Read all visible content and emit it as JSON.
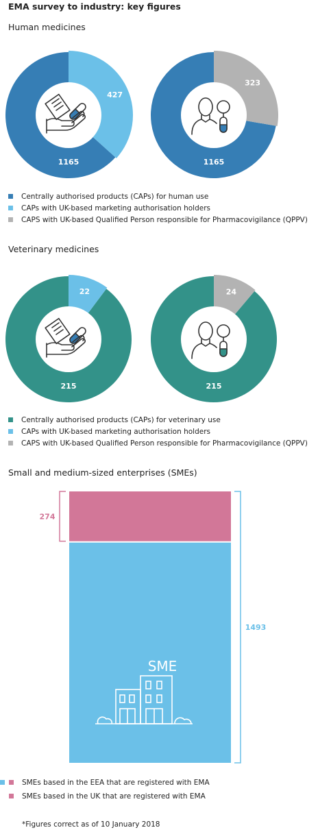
{
  "title": "EMA survey to industry: key figures",
  "colors": {
    "human": "#367eb5",
    "vet": "#339289",
    "light_blue": "#6bc0e8",
    "grey": "#b3b3b3",
    "pink": "#d27798",
    "white": "#ffffff"
  },
  "human": {
    "heading": "Human medicines",
    "legend": [
      {
        "label": "Centrally authorised products (CAPs) for human use",
        "color": "#367eb5"
      },
      {
        "label": "CAPs with UK-based marketing authorisation holders",
        "color": "#6bc0e8"
      },
      {
        "label": "CAPS with UK-based Qualified Person responsible for Pharmacovigilance (QPPV)",
        "color": "#b3b3b3"
      }
    ]
  },
  "vet": {
    "heading": "Veterinary medicines",
    "legend": [
      {
        "label": "Centrally authorised products (CAPs) for veterinary use",
        "color": "#339289"
      },
      {
        "label": "CAPs with UK-based marketing authorisation holders",
        "color": "#6bc0e8"
      },
      {
        "label": "CAPS with UK-based Qualified Person responsible for Pharmacovigilance (QPPV)",
        "color": "#b3b3b3"
      }
    ]
  },
  "sme": {
    "heading": "Small and medium-sized enterprises (SMEs)",
    "icon_label": "SME",
    "legend": [
      {
        "label": "SMEs based in the EEA that are registered with EMA",
        "color": "#6bc0e8"
      },
      {
        "label": "SMEs based in the UK that are registered with EMA",
        "color": "#d27798"
      }
    ]
  },
  "footnote": "*Figures correct as of 10 January 2018",
  "chart_data": [
    {
      "type": "pie",
      "group": "Human medicines",
      "icon": "medicine-hand-icon",
      "total": 1165,
      "highlight": 427,
      "total_label": "1165",
      "highlight_label": "427",
      "colors": [
        "#367eb5",
        "#6bc0e8"
      ]
    },
    {
      "type": "pie",
      "group": "Human medicines",
      "icon": "person-magnifier-icon",
      "total": 1165,
      "highlight": 323,
      "total_label": "1165",
      "highlight_label": "323",
      "colors": [
        "#367eb5",
        "#b3b3b3"
      ]
    },
    {
      "type": "pie",
      "group": "Veterinary medicines",
      "icon": "medicine-hand-icon",
      "total": 215,
      "highlight": 22,
      "total_label": "215",
      "highlight_label": "22",
      "colors": [
        "#339289",
        "#6bc0e8"
      ]
    },
    {
      "type": "pie",
      "group": "Veterinary medicines",
      "icon": "person-magnifier-icon",
      "total": 215,
      "highlight": 24,
      "total_label": "215",
      "highlight_label": "24",
      "colors": [
        "#339289",
        "#b3b3b3"
      ]
    },
    {
      "type": "bar",
      "group": "Small and medium-sized enterprises (SMEs)",
      "total": 1493,
      "uk": 274,
      "total_label": "1493",
      "uk_label": "274",
      "colors": [
        "#6bc0e8",
        "#d27798"
      ]
    }
  ]
}
